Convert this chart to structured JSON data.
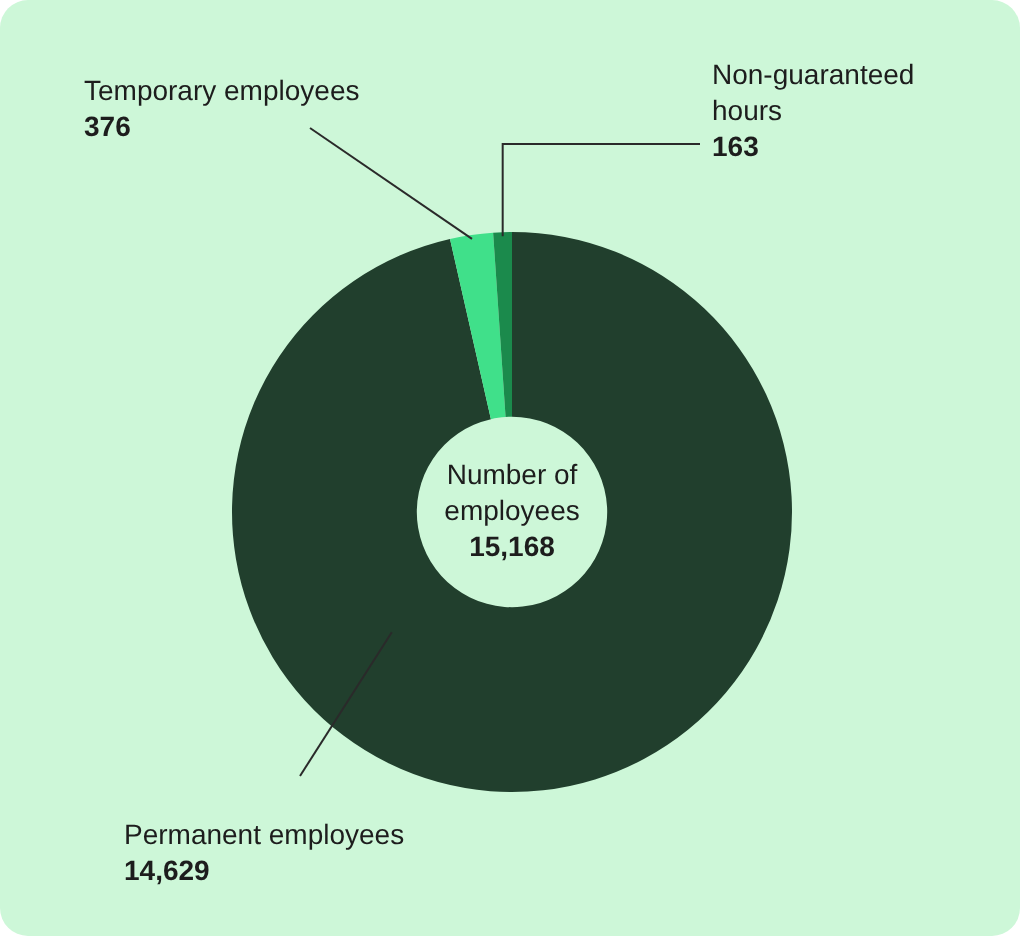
{
  "chart_data": {
    "type": "donut",
    "categories": [
      "Permanent employees",
      "Temporary employees",
      "Non-guaranteed hours"
    ],
    "values": [
      14629,
      376,
      163
    ],
    "colors": [
      "#213f2d",
      "#40e08a",
      "#1b8a4c"
    ],
    "value_labels": [
      "14,629",
      "376",
      "163"
    ],
    "annotations": [
      "Number of employees",
      "15,168"
    ],
    "legend": false
  }
}
